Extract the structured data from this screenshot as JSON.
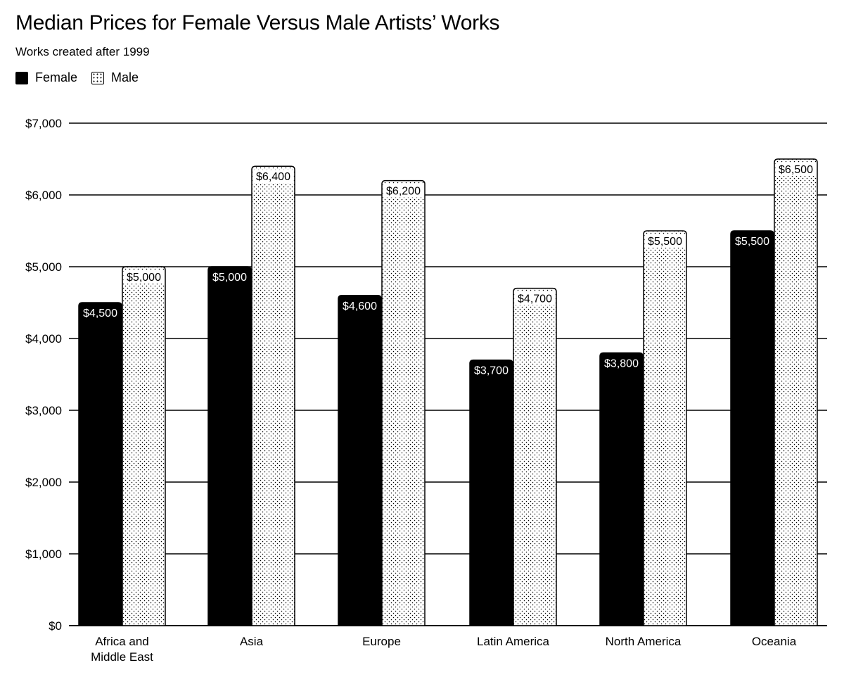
{
  "title": "Median Prices for Female Versus Male Artists’ Works",
  "subtitle": "Works created after 1999",
  "legend": {
    "female": "Female",
    "male": "Male"
  },
  "colors": {
    "female": "#000000",
    "male_fill": "#ffffff",
    "male_pattern": "#000000",
    "gridline": "#000000"
  },
  "chart_data": {
    "type": "bar",
    "title": "Median Prices for Female Versus Male Artists’ Works",
    "subtitle": "Works created after 1999",
    "categories": [
      "Africa and\nMiddle East",
      "Asia",
      "Europe",
      "Latin America",
      "North America",
      "Oceania"
    ],
    "series": [
      {
        "name": "Female",
        "values": [
          4500,
          5000,
          4600,
          3700,
          3800,
          5500
        ],
        "labels": [
          "$4,500",
          "$5,000",
          "$4,600",
          "$3,700",
          "$3,800",
          "$5,500"
        ]
      },
      {
        "name": "Male",
        "values": [
          5000,
          6400,
          6200,
          4700,
          5500,
          6500
        ],
        "labels": [
          "$5,000",
          "$6,400",
          "$6,200",
          "$4,700",
          "$5,500",
          "$6,500"
        ]
      }
    ],
    "ylim": [
      0,
      7000
    ],
    "yticks": [
      0,
      1000,
      2000,
      3000,
      4000,
      5000,
      6000,
      7000
    ],
    "ytick_labels": [
      "$0",
      "$1,000",
      "$2,000",
      "$3,000",
      "$4,000",
      "$5,000",
      "$6,000",
      "$7,000"
    ],
    "xlabel": "",
    "ylabel": "",
    "grid": true,
    "legend_position": "top-left"
  }
}
